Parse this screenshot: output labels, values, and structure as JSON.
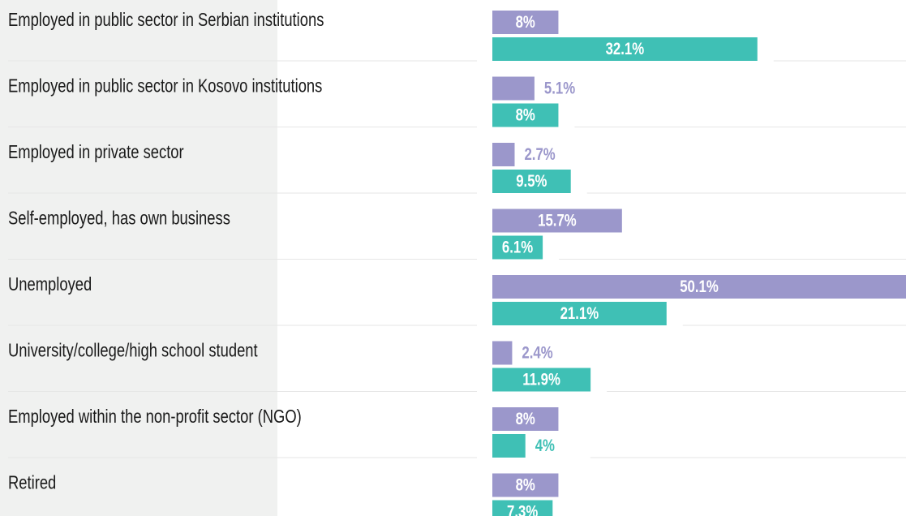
{
  "chart_data": {
    "type": "bar",
    "categories": [
      "Employed in public sector in Serbian institutions",
      "Employed in public sector in Kosovo institutions",
      "Employed in private sector",
      "Self-employed, has own business",
      "Unemployed",
      "University/college/high school student",
      "Employed within the non-profit sector (NGO)",
      "Retired"
    ],
    "series": [
      {
        "color": "#9b97cb",
        "values": [
          8,
          5.1,
          2.7,
          15.7,
          50.1,
          2.4,
          8,
          8
        ],
        "value_labels": [
          "8%",
          "5.1%",
          "2.7%",
          "15.7%",
          "50.1%",
          "2.4%",
          "8%",
          "8%"
        ]
      },
      {
        "color": "#3fc0b5",
        "values": [
          32.1,
          8,
          9.5,
          6.1,
          21.1,
          11.9,
          4,
          7.3
        ],
        "value_labels": [
          "32.1%",
          "8%",
          "9.5%",
          "6.1%",
          "21.1%",
          "11.9%",
          "4%",
          "7.3%"
        ]
      }
    ]
  }
}
